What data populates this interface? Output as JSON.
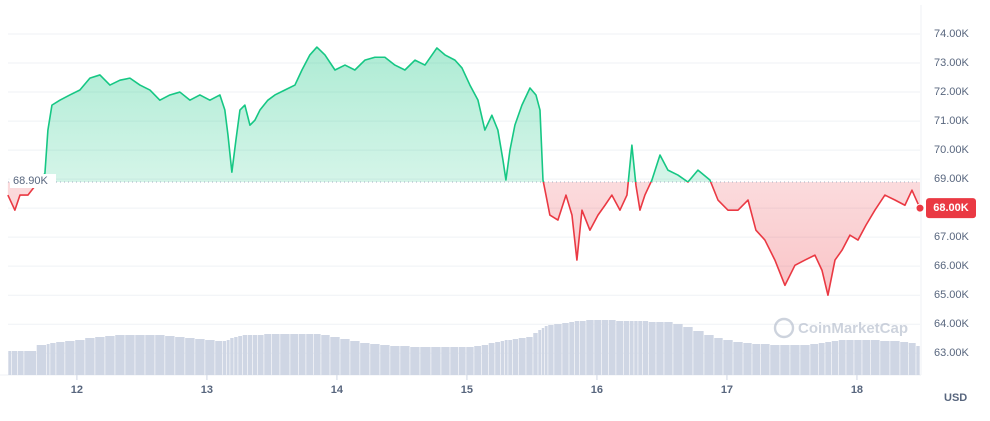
{
  "chart_data": {
    "type": "line",
    "currency": "USD",
    "watermark": "CoinMarketCap",
    "colors": {
      "up": "#16c784",
      "down": "#ea3943",
      "volume": "#cfd6e4"
    },
    "grid": true,
    "xlim": [
      11.47,
      18.485
    ],
    "xticks": [
      12,
      13,
      14,
      15,
      16,
      17,
      18
    ],
    "ylim": [
      62250,
      75000
    ],
    "yticks": [
      {
        "value": 63000,
        "label": "63.00K"
      },
      {
        "value": 64000,
        "label": "64.00K"
      },
      {
        "value": 65000,
        "label": "65.00K"
      },
      {
        "value": 66000,
        "label": "66.00K"
      },
      {
        "value": 67000,
        "label": "67.00K"
      },
      {
        "value": 68000,
        "label": "68.00K"
      },
      {
        "value": 69000,
        "label": "69.00K"
      },
      {
        "value": 70000,
        "label": "70.00K"
      },
      {
        "value": 71000,
        "label": "71.00K"
      },
      {
        "value": 72000,
        "label": "72.00K"
      },
      {
        "value": 73000,
        "label": "73.00K"
      },
      {
        "value": 74000,
        "label": "74.00K"
      }
    ],
    "baseline": {
      "value": 68900,
      "label": "68.90K"
    },
    "last_price": {
      "value": 68000,
      "label": "68.00K"
    },
    "x": [
      11.469,
      11.523,
      11.562,
      11.623,
      11.754,
      11.777,
      11.808,
      11.869,
      11.946,
      12.023,
      12.1,
      12.177,
      12.254,
      12.331,
      12.408,
      12.485,
      12.562,
      12.638,
      12.715,
      12.792,
      12.869,
      12.946,
      13.023,
      13.1,
      13.138,
      13.162,
      13.192,
      13.223,
      13.254,
      13.292,
      13.331,
      13.369,
      13.408,
      13.469,
      13.523,
      13.6,
      13.677,
      13.731,
      13.792,
      13.846,
      13.908,
      13.985,
      14.062,
      14.138,
      14.215,
      14.292,
      14.369,
      14.446,
      14.523,
      14.6,
      14.677,
      14.769,
      14.831,
      14.908,
      14.962,
      15.023,
      15.085,
      15.138,
      15.192,
      15.238,
      15.277,
      15.3,
      15.331,
      15.369,
      15.423,
      15.485,
      15.531,
      15.562,
      15.585,
      15.608,
      15.638,
      15.7,
      15.762,
      15.808,
      15.846,
      15.885,
      15.946,
      16.008,
      16.062,
      16.115,
      16.177,
      16.231,
      16.269,
      16.3,
      16.331,
      16.369,
      16.423,
      16.485,
      16.546,
      16.623,
      16.7,
      16.777,
      16.869,
      16.931,
      17.008,
      17.085,
      17.162,
      17.223,
      17.292,
      17.369,
      17.446,
      17.523,
      17.6,
      17.677,
      17.731,
      17.777,
      17.831,
      17.885,
      17.946,
      18.008,
      18.069,
      18.138,
      18.215,
      18.292,
      18.369,
      18.423,
      18.485
    ],
    "values": [
      68450,
      67930,
      68450,
      68450,
      69200,
      70690,
      71550,
      71720,
      71900,
      72070,
      72480,
      72590,
      72240,
      72410,
      72480,
      72240,
      72070,
      71720,
      71900,
      72000,
      71720,
      71900,
      71720,
      71900,
      71380,
      70520,
      69240,
      70340,
      71380,
      71550,
      70860,
      71030,
      71380,
      71720,
      71900,
      72070,
      72240,
      72760,
      73280,
      73550,
      73280,
      72760,
      72930,
      72760,
      73100,
      73200,
      73200,
      72930,
      72760,
      73100,
      72930,
      73520,
      73280,
      73100,
      72830,
      72240,
      71720,
      70690,
      71200,
      70690,
      69660,
      68970,
      70000,
      70860,
      71550,
      72140,
      71900,
      71380,
      68970,
      68450,
      67760,
      67590,
      68450,
      67760,
      66210,
      67930,
      67240,
      67760,
      68100,
      68450,
      67930,
      68450,
      70170,
      68790,
      67930,
      68450,
      68970,
      69830,
      69310,
      69140,
      68900,
      69310,
      68970,
      68280,
      67930,
      67930,
      68280,
      67240,
      66900,
      66210,
      65340,
      66030,
      66210,
      66380,
      65860,
      65000,
      66210,
      66550,
      67070,
      66900,
      67410,
      67930,
      68450,
      68280,
      68100,
      68620,
      68000
    ],
    "volume": [
      24,
      24,
      24,
      24,
      30,
      31,
      32,
      33,
      34,
      35,
      37,
      38,
      39,
      40,
      40,
      40,
      40,
      40,
      39,
      38,
      37,
      36,
      35,
      34,
      34,
      35,
      37,
      38,
      39,
      40,
      40,
      40,
      40,
      41,
      41,
      41,
      41,
      41,
      41,
      41,
      40,
      38,
      36,
      34,
      32,
      31,
      30,
      29,
      29,
      28,
      28,
      28,
      28,
      28,
      28,
      28,
      29,
      30,
      32,
      33,
      34,
      35,
      35,
      36,
      37,
      38,
      42,
      45,
      47,
      49,
      50,
      51,
      52,
      53,
      54,
      54,
      55,
      55,
      55,
      55,
      54,
      54,
      54,
      54,
      54,
      54,
      53,
      53,
      53,
      51,
      48,
      44,
      40,
      37,
      35,
      33,
      32,
      31,
      31,
      30,
      30,
      30,
      30,
      31,
      32,
      33,
      34,
      35,
      35,
      35,
      35,
      35,
      34,
      34,
      33,
      32,
      29
    ]
  }
}
